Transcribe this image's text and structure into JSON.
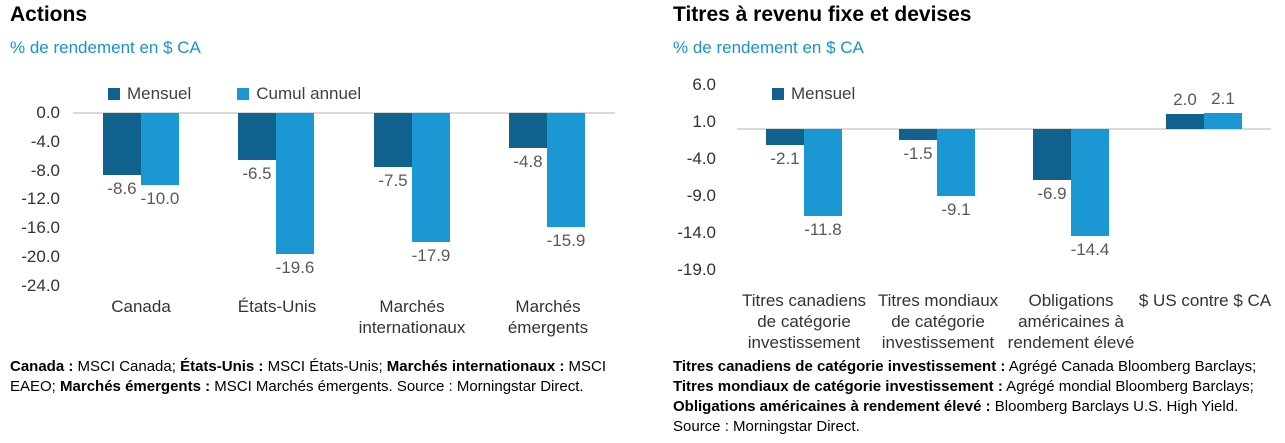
{
  "page": {
    "background": "#ffffff"
  },
  "colors": {
    "mensuel": "#10618e",
    "cumul_annuel": "#1b98d3",
    "subtitle": "#1793cd",
    "axis_line": "#d9d9d9",
    "data_label": "#595959",
    "tick_label": "#333333",
    "legend_text": "#404040"
  },
  "chart_data": [
    {
      "type": "bar",
      "title": "Actions",
      "subtitle": "% de rendement en $ CA",
      "ylabel": "% de rendement en $ CA",
      "xlabel": "",
      "grid": false,
      "legend_position": "top",
      "legend": [
        "Mensuel",
        "Cumul annuel"
      ],
      "categories": [
        "Canada",
        "États-Unis",
        "Marchés internationaux",
        "Marchés émergents"
      ],
      "series": [
        {
          "name": "Mensuel",
          "color": "#10618e",
          "values": [
            -8.6,
            -6.5,
            -7.5,
            -4.8
          ]
        },
        {
          "name": "Cumul annuel",
          "color": "#1b98d3",
          "values": [
            -10.0,
            -19.6,
            -17.9,
            -15.9
          ]
        }
      ],
      "ylim": [
        -24,
        0
      ],
      "yticks": [
        0,
        -4,
        -8,
        -12,
        -16,
        -20,
        -24
      ],
      "footnote_lines": [
        [
          {
            "text": "Canada :",
            "bold": true
          },
          {
            "text": " MSCI Canada; ",
            "bold": false
          },
          {
            "text": "États-Unis :",
            "bold": true
          },
          {
            "text": " MSCI États-Unis; ",
            "bold": false
          },
          {
            "text": "Marchés internationaux :",
            "bold": true
          },
          {
            "text": " MSCI",
            "bold": false
          }
        ],
        [
          {
            "text": "EAEO; ",
            "bold": false
          },
          {
            "text": "Marchés émergents :",
            "bold": true
          },
          {
            "text": " MSCI Marchés émergents. Source : Morningstar Direct.",
            "bold": false
          }
        ]
      ]
    },
    {
      "type": "bar",
      "title": "Titres à revenu fixe et devises",
      "subtitle": "% de rendement en $ CA",
      "ylabel": "% de rendement en $ CA",
      "xlabel": "",
      "grid": false,
      "legend_position": "top",
      "legend": [
        "Mensuel"
      ],
      "categories": [
        "Titres canadiens de catégorie investissement",
        "Titres mondiaux de catégorie investissement",
        "Obligations américaines à rendement élevé",
        "$ US contre $ CA"
      ],
      "series": [
        {
          "name": "Mensuel",
          "color": "#10618e",
          "values": [
            -2.1,
            -1.5,
            -6.9,
            2.0
          ]
        },
        {
          "name": "Cumul annuel",
          "color": "#1b98d3",
          "values": [
            -11.8,
            -9.1,
            -14.4,
            2.1
          ]
        }
      ],
      "ylim": [
        -19,
        6
      ],
      "yticks": [
        6,
        1,
        -4,
        -9,
        -14,
        -19
      ],
      "footnote_lines": [
        [
          {
            "text": "Titres canadiens de catégorie investissement :",
            "bold": true
          },
          {
            "text": " Agrégé Canada Bloomberg Barclays;",
            "bold": false
          }
        ],
        [
          {
            "text": "Titres mondiaux de catégorie investissement :",
            "bold": true
          },
          {
            "text": " Agrégé mondial Bloomberg Barclays;",
            "bold": false
          }
        ],
        [
          {
            "text": "Obligations américaines à rendement élevé :",
            "bold": true
          },
          {
            "text": " Bloomberg Barclays U.S. High Yield.",
            "bold": false
          }
        ],
        [
          {
            "text": "Source : Morningstar Direct.",
            "bold": false
          }
        ]
      ]
    }
  ]
}
